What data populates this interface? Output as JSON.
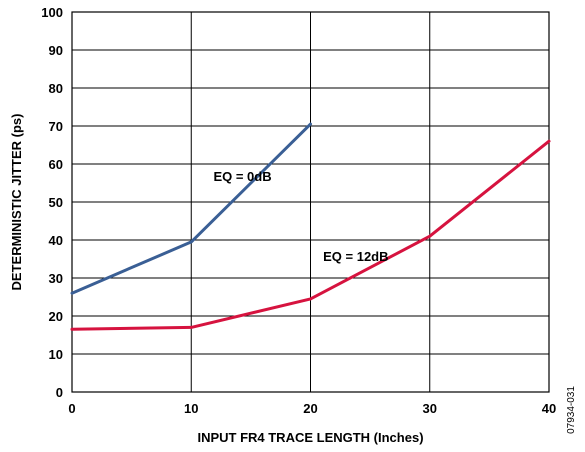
{
  "chart_data": {
    "type": "line",
    "xlabel": "INPUT FR4 TRACE LENGTH (Inches)",
    "ylabel": "DETERMINISTIC JITTER (ps)",
    "xlim": [
      0,
      40
    ],
    "ylim": [
      0,
      100
    ],
    "xticks": [
      0,
      10,
      20,
      30,
      40
    ],
    "yticks": [
      0,
      10,
      20,
      30,
      40,
      50,
      60,
      70,
      80,
      90,
      100
    ],
    "grid": true,
    "series": [
      {
        "name": "EQ = 0dB",
        "color": "#3a5f95",
        "x": [
          0,
          10,
          20
        ],
        "y": [
          26,
          39.5,
          70.5
        ]
      },
      {
        "name": "EQ = 12dB",
        "color": "#d6133f",
        "x": [
          0,
          10,
          20,
          30,
          40
        ],
        "y": [
          16.5,
          17,
          24.5,
          41,
          66
        ]
      }
    ],
    "figure_id": "07934-031"
  }
}
